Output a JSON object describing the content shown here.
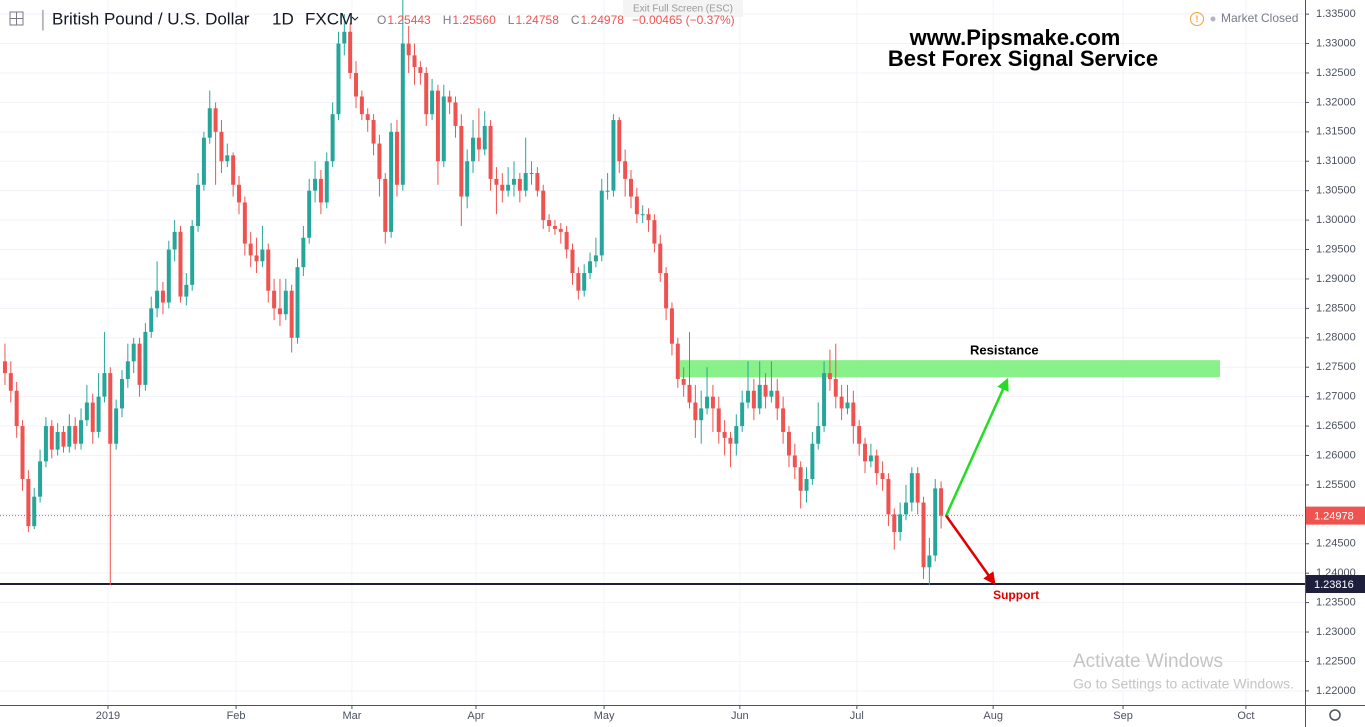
{
  "chart_data": {
    "type": "candlestick",
    "title": "British Pound / U.S. Dollar",
    "interval": "1D",
    "source": "FXCM",
    "ohlc_legend": [
      {
        "label": "O",
        "value": "1.25443"
      },
      {
        "label": "H",
        "value": "1.25560"
      },
      {
        "label": "L",
        "value": "1.24758"
      },
      {
        "label": "C",
        "value": "1.24978"
      }
    ],
    "change": "−0.00465 (−0.37%)",
    "status": "Market Closed",
    "fullscreen_hint": "Exit Full Screen (ESC)",
    "watermark": [
      "www.Pipsmake.com",
      "Best Forex Signal Service"
    ],
    "os_notice": [
      "Activate Windows",
      "Go to Settings to activate Windows."
    ],
    "up_color": "#26a69a",
    "down_color": "#ef5350",
    "grid": true,
    "xlim": [
      -0.85,
      222.2
    ],
    "xticks": [
      {
        "value": 17.6,
        "label": "2019"
      },
      {
        "value": 39.5,
        "label": "Feb"
      },
      {
        "value": 59.3,
        "label": "Mar"
      },
      {
        "value": 80.5,
        "label": "Apr"
      },
      {
        "value": 102.4,
        "label": "May"
      },
      {
        "value": 125.6,
        "label": "Jun"
      },
      {
        "value": 145.6,
        "label": "Jul"
      },
      {
        "value": 168.9,
        "label": "Aug"
      },
      {
        "value": 191.1,
        "label": "Sep"
      },
      {
        "value": 212.1,
        "label": "Oct"
      }
    ],
    "ylim": [
      1.2176,
      1.3374
    ],
    "yticks": [
      {
        "value": 1.22,
        "label": "1.22000"
      },
      {
        "value": 1.225,
        "label": "1.22500"
      },
      {
        "value": 1.23,
        "label": "1.23000"
      },
      {
        "value": 1.235,
        "label": "1.23500"
      },
      {
        "value": 1.24,
        "label": "1.24000"
      },
      {
        "value": 1.245,
        "label": "1.24500"
      },
      {
        "value": 1.25,
        "label": "1.25000"
      },
      {
        "value": 1.255,
        "label": "1.25500"
      },
      {
        "value": 1.26,
        "label": "1.26000"
      },
      {
        "value": 1.265,
        "label": "1.26500"
      },
      {
        "value": 1.27,
        "label": "1.27000"
      },
      {
        "value": 1.275,
        "label": "1.27500"
      },
      {
        "value": 1.28,
        "label": "1.28000"
      },
      {
        "value": 1.285,
        "label": "1.28500"
      },
      {
        "value": 1.29,
        "label": "1.29000"
      },
      {
        "value": 1.295,
        "label": "1.29500"
      },
      {
        "value": 1.3,
        "label": "1.30000"
      },
      {
        "value": 1.305,
        "label": "1.30500"
      },
      {
        "value": 1.31,
        "label": "1.31000"
      },
      {
        "value": 1.315,
        "label": "1.31500"
      },
      {
        "value": 1.32,
        "label": "1.32000"
      },
      {
        "value": 1.325,
        "label": "1.32500"
      },
      {
        "value": 1.33,
        "label": "1.33000"
      },
      {
        "value": 1.335,
        "label": "1.33500"
      }
    ],
    "resistance": {
      "label": "Resistance",
      "zone": [
        1.2733,
        1.2762
      ],
      "color": "#7cf07c"
    },
    "support": {
      "label": "Support",
      "value": 1.23816,
      "color": "#1e1f3d"
    },
    "series": [
      {
        "open": [
          1.276,
          1.274,
          1.271,
          1.265,
          1.256,
          1.248,
          1.253,
          1.259,
          1.265,
          1.261,
          1.264,
          1.2615,
          1.265,
          1.262,
          1.266,
          1.269,
          1.264,
          1.27,
          1.274,
          1.262,
          1.268,
          1.273,
          1.276,
          1.279,
          1.272,
          1.281,
          1.285,
          1.288,
          1.286,
          1.295,
          1.298,
          1.287,
          1.289,
          1.299,
          1.306,
          1.314,
          1.319,
          1.315,
          1.31,
          1.311,
          1.306,
          1.303,
          1.296,
          1.294,
          1.293,
          1.295,
          1.288,
          1.285,
          1.284,
          1.288,
          1.28,
          1.292,
          1.297,
          1.305,
          1.307,
          1.303,
          1.31,
          1.318,
          1.33,
          1.332,
          1.325,
          1.321,
          1.318,
          1.317,
          1.313,
          1.307,
          1.298,
          1.315,
          1.306,
          1.33,
          1.328,
          1.326,
          1.325,
          1.318,
          1.322,
          1.31,
          1.321,
          1.32,
          1.316,
          1.304,
          1.31,
          1.314,
          1.312,
          1.316,
          1.307,
          1.306,
          1.305,
          1.306,
          1.307,
          1.305,
          1.308,
          1.308,
          1.305,
          1.3,
          1.299,
          1.2985,
          1.298,
          1.295,
          1.291,
          1.288,
          1.291,
          1.293,
          1.294,
          1.305,
          1.305,
          1.317,
          1.31,
          1.307,
          1.304,
          1.301,
          1.301,
          1.3,
          1.296,
          1.291,
          1.285,
          1.279,
          1.273,
          1.272,
          1.269,
          1.266,
          1.268,
          1.27,
          1.268,
          1.264,
          1.263,
          1.262,
          1.265,
          1.269,
          1.271,
          1.268,
          1.272,
          1.27,
          1.271,
          1.268,
          1.264,
          1.26,
          1.258,
          1.254,
          1.256,
          1.262,
          1.265,
          1.274,
          1.273,
          1.27,
          1.268,
          1.269,
          1.265,
          1.262,
          1.259,
          1.26,
          1.257,
          1.256,
          1.25,
          1.247,
          1.25,
          1.252,
          1.257,
          1.252,
          1.241,
          1.243,
          1.25443
        ],
        "high": [
          1.279,
          1.276,
          1.2725,
          1.266,
          1.2575,
          1.2545,
          1.261,
          1.2665,
          1.266,
          1.2655,
          1.265,
          1.267,
          1.2665,
          1.268,
          1.272,
          1.2705,
          1.274,
          1.281,
          1.275,
          1.2695,
          1.2745,
          1.279,
          1.28,
          1.28,
          1.2825,
          1.287,
          1.293,
          1.2895,
          1.2965,
          1.3,
          1.299,
          1.291,
          1.3,
          1.308,
          1.315,
          1.322,
          1.32,
          1.317,
          1.313,
          1.3115,
          1.3075,
          1.304,
          1.298,
          1.297,
          1.299,
          1.296,
          1.29,
          1.29,
          1.29,
          1.289,
          1.2935,
          1.299,
          1.307,
          1.31,
          1.3085,
          1.3115,
          1.32,
          1.332,
          1.335,
          1.3335,
          1.327,
          1.322,
          1.319,
          1.318,
          1.3145,
          1.308,
          1.3165,
          1.317,
          1.338,
          1.333,
          1.33,
          1.327,
          1.326,
          1.324,
          1.323,
          1.323,
          1.322,
          1.321,
          1.318,
          1.312,
          1.317,
          1.319,
          1.3185,
          1.317,
          1.309,
          1.308,
          1.309,
          1.31,
          1.308,
          1.314,
          1.31,
          1.309,
          1.306,
          1.301,
          1.3,
          1.2995,
          1.299,
          1.296,
          1.292,
          1.2925,
          1.2945,
          1.297,
          1.307,
          1.308,
          1.318,
          1.3175,
          1.312,
          1.3085,
          1.3055,
          1.3025,
          1.302,
          1.301,
          1.2975,
          1.292,
          1.286,
          1.28,
          1.275,
          1.281,
          1.272,
          1.271,
          1.275,
          1.272,
          1.27,
          1.266,
          1.264,
          1.267,
          1.271,
          1.276,
          1.273,
          1.276,
          1.274,
          1.276,
          1.273,
          1.27,
          1.265,
          1.262,
          1.259,
          1.258,
          1.264,
          1.269,
          1.276,
          1.278,
          1.279,
          1.272,
          1.272,
          1.271,
          1.266,
          1.263,
          1.262,
          1.261,
          1.259,
          1.257,
          1.251,
          1.252,
          1.255,
          1.258,
          1.258,
          1.253,
          1.246,
          1.256,
          1.2556
        ],
        "low": [
          1.272,
          1.269,
          1.263,
          1.254,
          1.247,
          1.2475,
          1.252,
          1.258,
          1.2595,
          1.26,
          1.2605,
          1.2605,
          1.261,
          1.261,
          1.265,
          1.262,
          1.263,
          1.269,
          1.238,
          1.261,
          1.2665,
          1.2715,
          1.274,
          1.27,
          1.271,
          1.28,
          1.2835,
          1.284,
          1.285,
          1.293,
          1.286,
          1.2855,
          1.288,
          1.298,
          1.305,
          1.313,
          1.306,
          1.308,
          1.309,
          1.304,
          1.301,
          1.294,
          1.292,
          1.291,
          1.292,
          1.286,
          1.283,
          1.282,
          1.283,
          1.2775,
          1.279,
          1.2905,
          1.296,
          1.303,
          1.301,
          1.302,
          1.309,
          1.317,
          1.328,
          1.324,
          1.319,
          1.317,
          1.315,
          1.311,
          1.304,
          1.296,
          1.297,
          1.304,
          1.305,
          1.325,
          1.323,
          1.323,
          1.316,
          1.317,
          1.306,
          1.309,
          1.318,
          1.314,
          1.299,
          1.302,
          1.308,
          1.31,
          1.311,
          1.305,
          1.301,
          1.303,
          1.304,
          1.304,
          1.303,
          1.304,
          1.306,
          1.304,
          1.2985,
          1.298,
          1.2975,
          1.296,
          1.2935,
          1.289,
          1.2865,
          1.287,
          1.29,
          1.292,
          1.293,
          1.3035,
          1.304,
          1.308,
          1.304,
          1.302,
          1.2995,
          1.2995,
          1.298,
          1.2945,
          1.2895,
          1.283,
          1.277,
          1.2715,
          1.27,
          1.268,
          1.263,
          1.262,
          1.267,
          1.264,
          1.262,
          1.26,
          1.258,
          1.26,
          1.264,
          1.268,
          1.266,
          1.267,
          1.268,
          1.269,
          1.266,
          1.262,
          1.258,
          1.256,
          1.251,
          1.252,
          1.255,
          1.261,
          1.264,
          1.271,
          1.268,
          1.266,
          1.267,
          1.262,
          1.26,
          1.257,
          1.258,
          1.255,
          1.254,
          1.248,
          1.244,
          1.2455,
          1.249,
          1.2505,
          1.25,
          1.239,
          1.238,
          1.242,
          1.24758
        ],
        "close": [
          1.274,
          1.271,
          1.265,
          1.256,
          1.248,
          1.253,
          1.259,
          1.265,
          1.261,
          1.264,
          1.2615,
          1.265,
          1.262,
          1.266,
          1.269,
          1.264,
          1.27,
          1.274,
          1.262,
          1.268,
          1.273,
          1.276,
          1.279,
          1.272,
          1.281,
          1.285,
          1.288,
          1.286,
          1.295,
          1.298,
          1.287,
          1.289,
          1.299,
          1.306,
          1.314,
          1.319,
          1.315,
          1.31,
          1.311,
          1.306,
          1.303,
          1.296,
          1.294,
          1.293,
          1.295,
          1.288,
          1.285,
          1.284,
          1.288,
          1.28,
          1.292,
          1.297,
          1.305,
          1.307,
          1.303,
          1.31,
          1.318,
          1.33,
          1.332,
          1.325,
          1.321,
          1.318,
          1.317,
          1.313,
          1.307,
          1.298,
          1.315,
          1.306,
          1.33,
          1.328,
          1.326,
          1.325,
          1.318,
          1.322,
          1.31,
          1.321,
          1.32,
          1.316,
          1.304,
          1.31,
          1.314,
          1.312,
          1.316,
          1.307,
          1.306,
          1.305,
          1.306,
          1.307,
          1.305,
          1.308,
          1.308,
          1.305,
          1.3,
          1.299,
          1.2985,
          1.298,
          1.295,
          1.291,
          1.288,
          1.291,
          1.293,
          1.294,
          1.305,
          1.305,
          1.317,
          1.31,
          1.307,
          1.304,
          1.301,
          1.301,
          1.3,
          1.296,
          1.291,
          1.285,
          1.279,
          1.273,
          1.272,
          1.269,
          1.266,
          1.268,
          1.27,
          1.268,
          1.264,
          1.263,
          1.262,
          1.265,
          1.269,
          1.271,
          1.268,
          1.272,
          1.27,
          1.271,
          1.268,
          1.264,
          1.26,
          1.258,
          1.254,
          1.256,
          1.262,
          1.265,
          1.274,
          1.273,
          1.27,
          1.268,
          1.269,
          1.265,
          1.262,
          1.259,
          1.26,
          1.257,
          1.256,
          1.25,
          1.247,
          1.25,
          1.252,
          1.257,
          1.252,
          1.241,
          1.243,
          1.2544,
          1.24978
        ]
      }
    ]
  }
}
